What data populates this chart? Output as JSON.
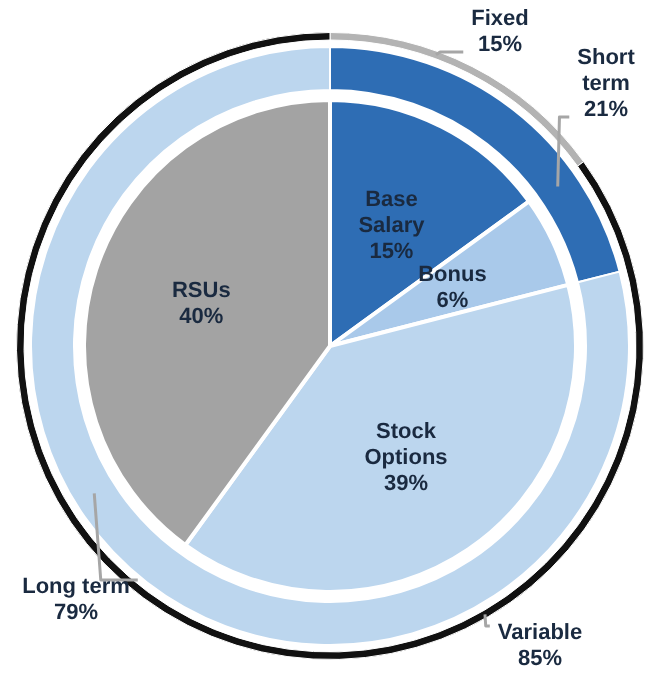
{
  "chart_data": [
    {
      "type": "donut",
      "categories": [
        "Fixed",
        "Variable"
      ],
      "values": [
        15,
        85
      ],
      "value_labels": [
        "15%",
        "85%"
      ],
      "colors": [
        "#b3b3b3",
        "#111111"
      ]
    },
    {
      "type": "donut",
      "categories": [
        "Short term",
        "Long term"
      ],
      "values": [
        21,
        79
      ],
      "value_labels": [
        "21%",
        "79%"
      ],
      "colors": [
        "#2e6db4",
        "#bcd6ee"
      ]
    },
    {
      "type": "pie",
      "categories": [
        "Base Salary",
        "Bonus",
        "Stock Options",
        "RSUs"
      ],
      "values": [
        15,
        6,
        39,
        40
      ],
      "value_labels": [
        "15%",
        "6%",
        "39%",
        "40%"
      ],
      "colors": [
        "#2e6db4",
        "#a9c9ea",
        "#bcd6ee",
        "#a3a3a3"
      ]
    }
  ]
}
